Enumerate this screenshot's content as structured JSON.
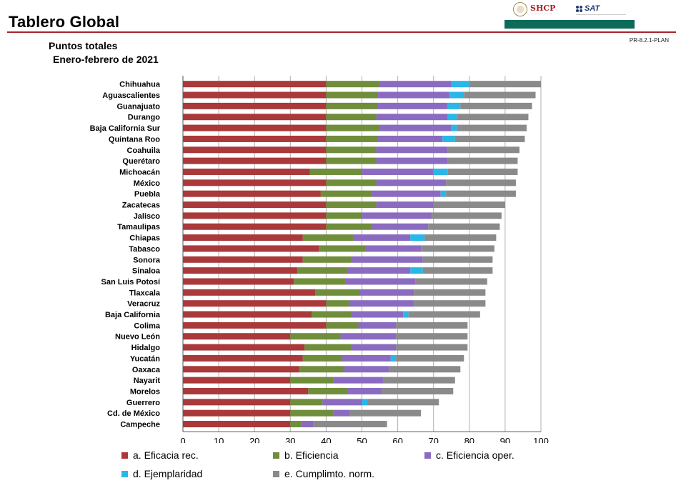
{
  "header": {
    "title": "Tablero Global",
    "code": "PR-8.2.1-PLAN",
    "logo_shcp": "SHCP",
    "logo_sat": "SAT"
  },
  "subtitle": {
    "line1": "Puntos totales",
    "line2": "Enero-febrero de 2021"
  },
  "colors": {
    "eficacia": "#a9393a",
    "eficiencia": "#6f8d3b",
    "eficiencia_oper": "#8b6bc0",
    "ejemplaridad": "#29b7e8",
    "cumplimiento": "#8a8a8a",
    "brand_red": "#a9232a",
    "brand_green": "#0d6b58"
  },
  "chart_data": {
    "type": "bar",
    "orientation": "horizontal",
    "stacked": true,
    "xlim": [
      0,
      100
    ],
    "xticks": [
      "0",
      "10",
      "20",
      "30",
      "40",
      "50",
      "60",
      "70",
      "80",
      "90",
      "100"
    ],
    "grid": true,
    "legend_position": "bottom",
    "categories": [
      "Chihuahua",
      "Aguascalientes",
      "Guanajuato",
      "Durango",
      "Baja California Sur",
      "Quintana Roo",
      "Coahuila",
      "Querétaro",
      "Michoacán",
      "México",
      "Puebla",
      "Zacatecas",
      "Jalisco",
      "Tamaulipas",
      "Chiapas",
      "Tabasco",
      "Sonora",
      "Sinaloa",
      "San Luis Potosí",
      "Tlaxcala",
      "Veracruz",
      "Baja California",
      "Colima",
      "Nuevo León",
      "Hidalgo",
      "Yucatán",
      "Oaxaca",
      "Nayarit",
      "Morelos",
      "Guerrero",
      "Cd. de México",
      "Campeche"
    ],
    "series": [
      {
        "name": "a. Eficacia rec.",
        "key": "eficacia",
        "values": [
          40,
          40,
          40,
          40,
          40,
          40,
          40,
          40,
          35.5,
          40,
          38.5,
          40,
          40,
          40,
          33.5,
          38,
          33.5,
          32,
          31,
          37,
          40,
          36,
          40,
          30,
          34,
          33.5,
          32.5,
          30,
          35,
          30,
          30,
          30
        ]
      },
      {
        "name": "b. Eficiencia",
        "key": "eficiencia",
        "values": [
          15,
          14.5,
          14.5,
          14,
          15,
          14.5,
          14,
          14,
          14.5,
          14,
          14,
          14,
          10,
          12.5,
          14,
          13,
          13.5,
          14,
          14.5,
          12.5,
          6.5,
          11,
          9,
          14,
          13,
          11,
          12.5,
          12,
          11,
          9,
          12,
          3
        ]
      },
      {
        "name": "c. Eficiencia oper.",
        "key": "eficiencia_oper",
        "values": [
          20,
          20,
          19.5,
          20,
          20,
          18,
          20,
          20,
          20,
          19.5,
          19.5,
          16,
          19.5,
          16,
          16,
          15.5,
          20,
          17.5,
          19.5,
          15,
          18,
          14.5,
          10.5,
          15.5,
          12.5,
          13.5,
          12.5,
          14,
          9.5,
          11,
          4.5,
          3.5
        ]
      },
      {
        "name": "d. Ejemplaridad",
        "key": "ejemplaridad",
        "values": [
          5,
          4,
          3.5,
          2.5,
          1.5,
          3.5,
          0,
          0,
          4,
          0,
          1.5,
          0,
          0,
          0,
          4,
          0,
          0,
          3.5,
          0,
          0,
          0,
          1.5,
          0,
          0,
          0,
          1.5,
          0,
          0,
          0,
          1.5,
          0,
          0
        ]
      },
      {
        "name": "e. Cumplimto. norm.",
        "key": "cumplimiento",
        "values": [
          20,
          20,
          20,
          20,
          19.5,
          19.5,
          20,
          19.5,
          19.5,
          19.5,
          19.5,
          20,
          19.5,
          20,
          20,
          20.5,
          19.5,
          19.5,
          20,
          20,
          20,
          20,
          20,
          20,
          20,
          19,
          20,
          20,
          20,
          20,
          20,
          20.5
        ]
      }
    ]
  }
}
